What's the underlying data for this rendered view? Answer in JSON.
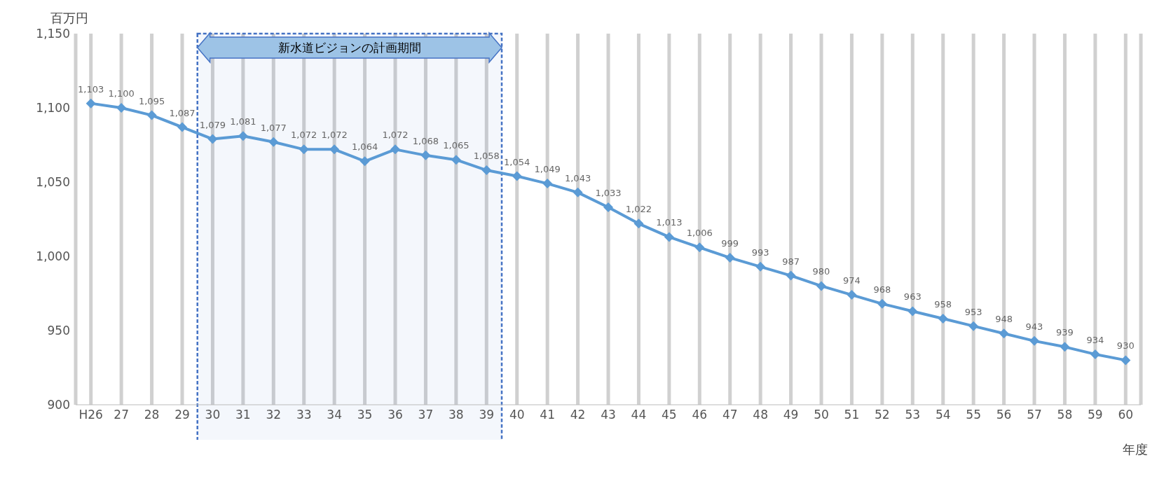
{
  "chart_data": {
    "type": "line",
    "ylabel": "百万円",
    "xlabel": "年度",
    "categories": [
      "H26",
      "27",
      "28",
      "29",
      "30",
      "31",
      "32",
      "33",
      "34",
      "35",
      "36",
      "37",
      "38",
      "39",
      "40",
      "41",
      "42",
      "43",
      "44",
      "45",
      "46",
      "47",
      "48",
      "49",
      "50",
      "51",
      "52",
      "53",
      "54",
      "55",
      "56",
      "57",
      "58",
      "59",
      "60"
    ],
    "series": [
      {
        "color": "#5b9bd5",
        "values": [
          1103,
          1100,
          1095,
          1087,
          1079,
          1081,
          1077,
          1072,
          1072,
          1064,
          1072,
          1068,
          1065,
          1058,
          1054,
          1049,
          1043,
          1033,
          1022,
          1013,
          1006,
          999,
          993,
          987,
          980,
          974,
          968,
          963,
          958,
          953,
          948,
          943,
          939,
          934,
          930
        ],
        "value_labels": [
          "1,103",
          "1,100",
          "1,095",
          "1,087",
          "1,079",
          "1,081",
          "1,077",
          "1,072",
          "1,072",
          "1,064",
          "1,072",
          "1,068",
          "1,065",
          "1,058",
          "1,054",
          "1,049",
          "1,043",
          "1,033",
          "1,022",
          "1,013",
          "1,006",
          "999",
          "993",
          "987",
          "980",
          "974",
          "968",
          "963",
          "958",
          "953",
          "948",
          "943",
          "939",
          "934",
          "930"
        ]
      }
    ],
    "ylim": [
      900,
      1150
    ],
    "yticks": [
      {
        "value": 900,
        "label": "900"
      },
      {
        "value": 950,
        "label": "950"
      },
      {
        "value": 1000,
        "label": "1,000"
      },
      {
        "value": 1050,
        "label": "1,050"
      },
      {
        "value": 1100,
        "label": "1,100"
      },
      {
        "value": 1150,
        "label": "1,150"
      }
    ],
    "bands": [
      {
        "axis": "x",
        "from": "30",
        "to": "39",
        "label": "新水道ビジョンの計画期間",
        "color": "#4472c4"
      }
    ],
    "grid": "x",
    "marker": "diamond",
    "line_style": "solid",
    "legend": false
  }
}
